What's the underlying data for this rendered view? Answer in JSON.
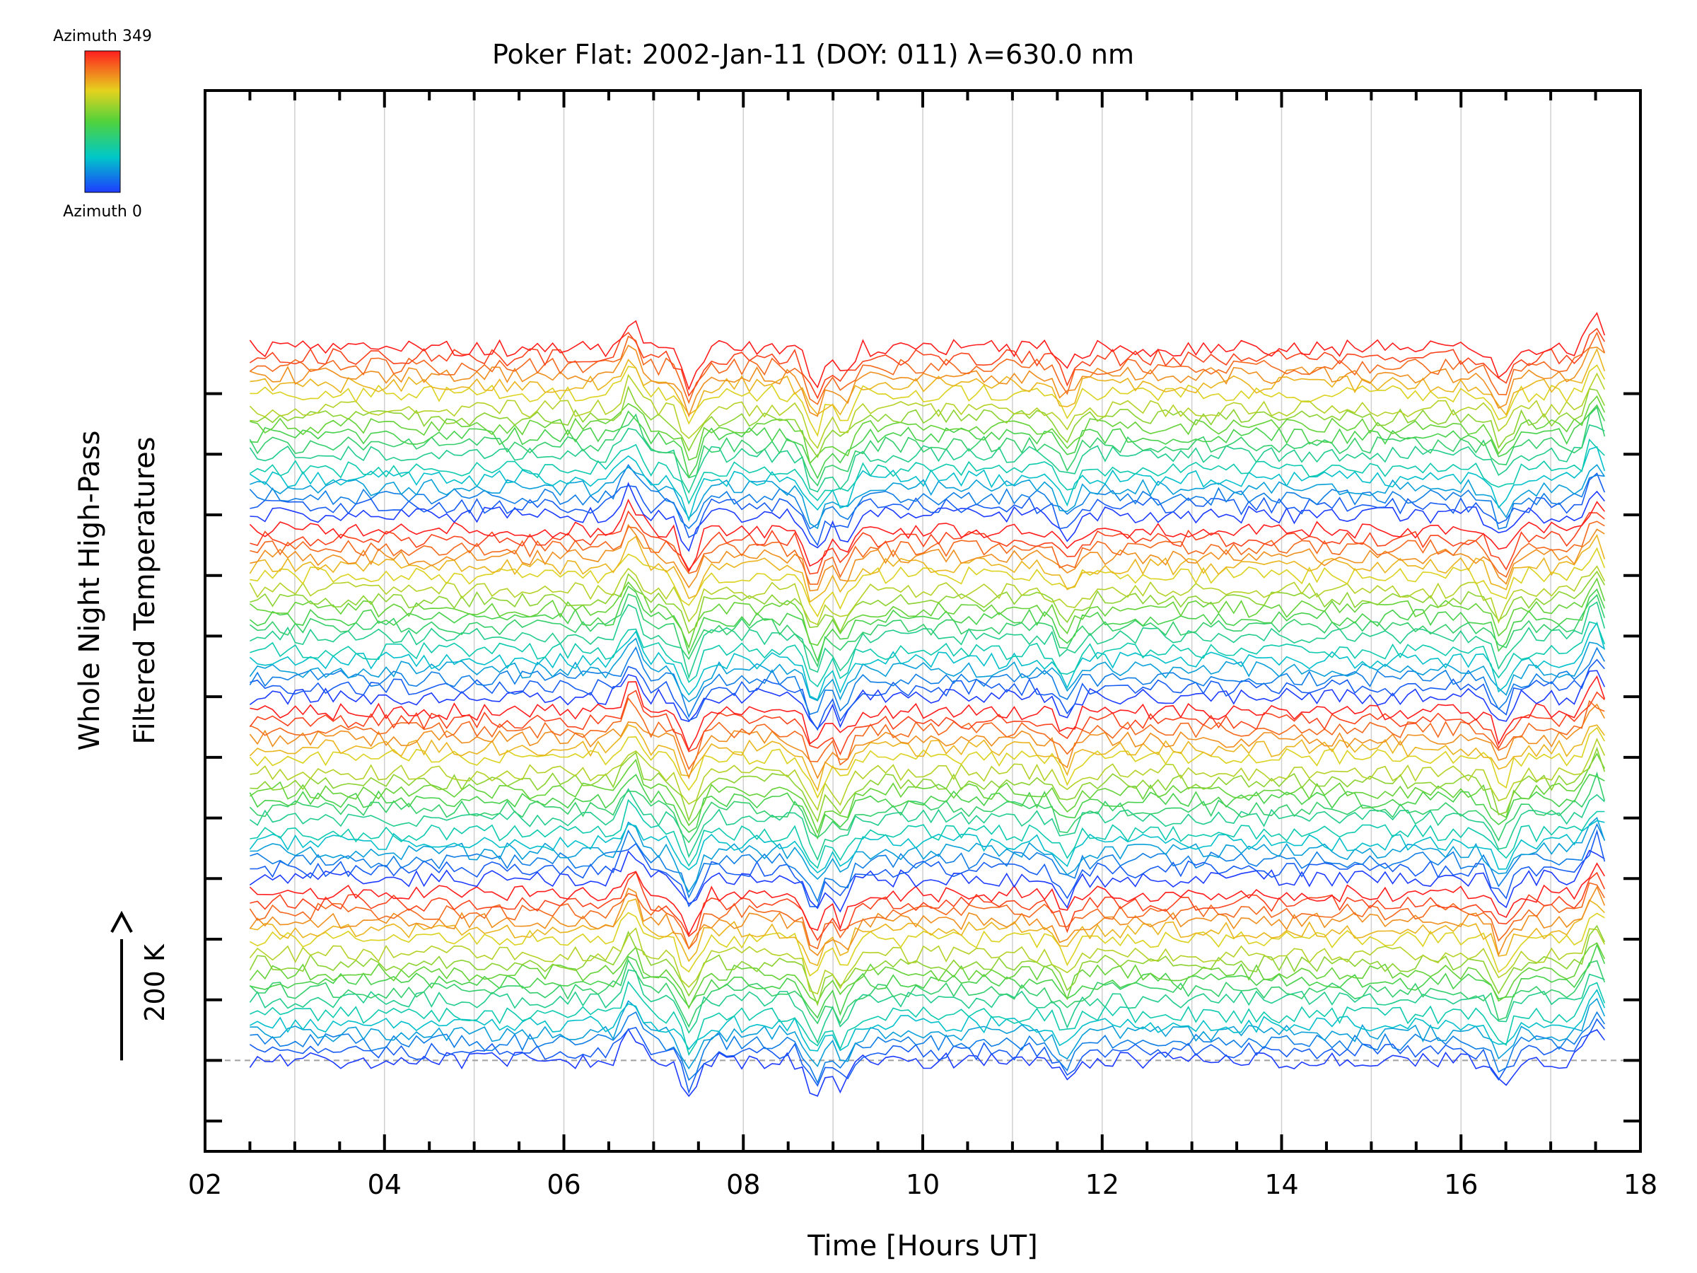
{
  "chart_data": {
    "type": "line",
    "title": "Poker Flat: 2002-Jan-11 (DOY: 011) λ=630.0 nm",
    "xlabel": "Time [Hours UT]",
    "ylabel_line1": "Whole Night High-Pass",
    "ylabel_line2": "Filtered Temperatures",
    "xlim": [
      2,
      18
    ],
    "x_ticks": [
      "02",
      "04",
      "06",
      "08",
      "10",
      "12",
      "14",
      "16",
      "18"
    ],
    "x_start": 2.5,
    "x_end": 17.6,
    "n_points": 180,
    "ylim_K": [
      -150,
      1600
    ],
    "y_tick_step_K": 100,
    "y_tick_count": 13,
    "baseline_K": 0,
    "scale_bar_label": "200 K",
    "scale_bar_K": 200,
    "colorbar": {
      "top_label": "Azimuth 349",
      "bottom_label": "Azimuth 0",
      "colormap": "rainbow (blue→green→yellow→red)"
    },
    "series_groups": [
      {
        "name": "",
        "offset_K": 0
      },
      {
        "name": "",
        "offset_K": 100
      },
      {
        "name": "",
        "offset_K": 200
      },
      {
        "name": "",
        "offset_K": 300
      },
      {
        "name": "",
        "offset_K": 400
      },
      {
        "name": "",
        "offset_K": 500
      },
      {
        "name": "",
        "offset_K": 600
      },
      {
        "name": "",
        "offset_K": 700
      },
      {
        "name": "",
        "offset_K": 800
      },
      {
        "name": "",
        "offset_K": 900
      },
      {
        "name": "",
        "offset_K": 1000
      },
      {
        "name": "",
        "offset_K": 1100
      }
    ],
    "series_per_group": 6,
    "common_features": [
      {
        "x": 6.75,
        "dK": 45
      },
      {
        "x": 7.4,
        "dK": -55
      },
      {
        "x": 8.8,
        "dK": -60
      },
      {
        "x": 9.1,
        "dK": -45
      },
      {
        "x": 11.6,
        "dK": -35
      },
      {
        "x": 16.45,
        "dK": -45
      },
      {
        "x": 17.5,
        "dK": 50
      }
    ],
    "noise_K": 14,
    "grid": "vertical lines at each hour",
    "colors": {
      "axes": "#000000",
      "grid": "#d0d0d0",
      "baseline": "#a0a0a0"
    }
  }
}
